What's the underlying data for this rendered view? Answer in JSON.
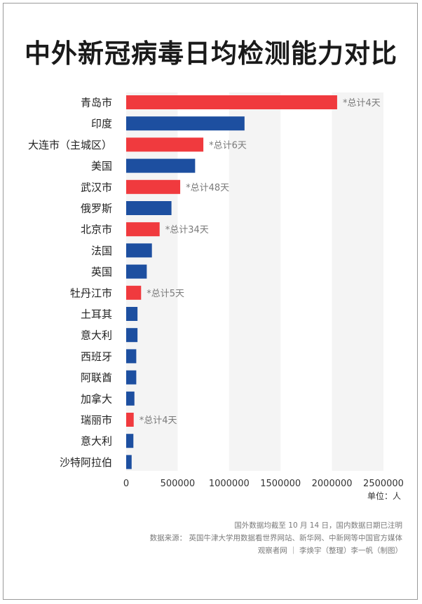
{
  "chart_data": {
    "type": "bar",
    "orientation": "horizontal",
    "title": "中外新冠病毒日均检测能力对比",
    "categories": [
      "青岛市",
      "印度",
      "大连市（主城区）",
      "美国",
      "武汉市",
      "俄罗斯",
      "北京市",
      "法国",
      "英国",
      "牡丹江市",
      "土耳其",
      "意大利",
      "西班牙",
      "阿联酋",
      "加拿大",
      "瑞丽市",
      "意大利",
      "沙特阿拉伯"
    ],
    "values": [
      2050000,
      1150000,
      750000,
      670000,
      525000,
      440000,
      325000,
      250000,
      200000,
      145000,
      110000,
      110000,
      98000,
      98000,
      80000,
      73000,
      70000,
      53000
    ],
    "group": [
      "domestic",
      "foreign",
      "domestic",
      "foreign",
      "domestic",
      "foreign",
      "domestic",
      "foreign",
      "foreign",
      "domestic",
      "foreign",
      "foreign",
      "foreign",
      "foreign",
      "foreign",
      "domestic",
      "foreign",
      "foreign"
    ],
    "annotations": [
      "*总计4天",
      "",
      "*总计6天",
      "",
      "*总计48天",
      "",
      "*总计34天",
      "",
      "",
      "*总计5天",
      "",
      "",
      "",
      "",
      "",
      "*总计4天",
      "",
      ""
    ],
    "xticks": [
      0,
      500000,
      1000000,
      1500000,
      2000000,
      2500000
    ],
    "xlim": [
      0,
      2500000
    ],
    "unit_label": "单位：人",
    "colors": {
      "domestic": "#f03a3e",
      "foreign": "#1d4fa0",
      "stripe": "#f4f4f4"
    },
    "grid": "alternating vertical stripes"
  },
  "footnotes": {
    "line1": "国外数据均截至 10 月 14 日，国内数据日期已注明",
    "line2": "数据来源： 英国牛津大学用数据看世界网站、新华网、中新网等中国官方媒体",
    "line3": "观察者网 ｜ 李焕宇（整理）李一帆（制图）"
  }
}
